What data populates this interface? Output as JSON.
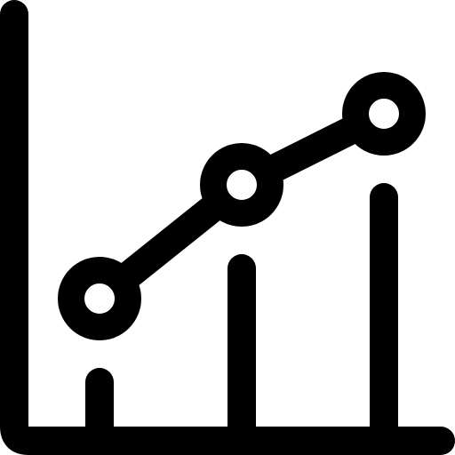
{
  "icon": {
    "name": "line-bar-chart-icon",
    "stroke_color": "#000000",
    "fill_color": "#ffffff",
    "background_color": "#ffffff"
  }
}
